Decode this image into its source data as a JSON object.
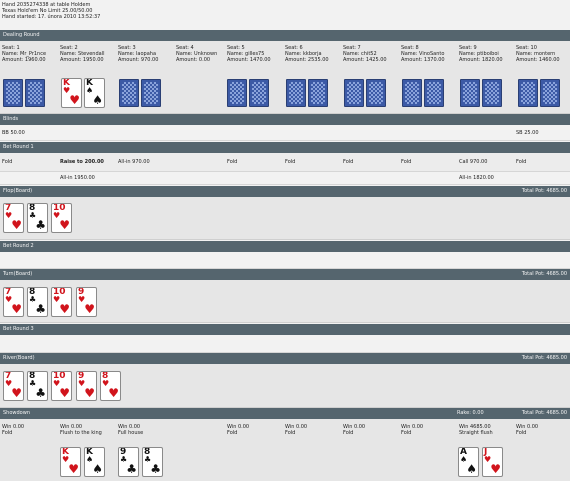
{
  "header": {
    "line1": "Hand 2035274338 at table Holdem",
    "line2": "Texas Hold'em No Limit 25.00/50.00",
    "line3": "Hand started: 17. února 2010 13:52:37"
  },
  "sections": {
    "dealing": "Dealing Round",
    "blinds": "Blinds",
    "bet1": "Bet Round 1",
    "flop": "Flop(Board)",
    "bet2": "Bet Round 2",
    "turn": "Turn(Board)",
    "bet3": "Bet Round 3",
    "river": "River(Board)",
    "showdown": "Showdown"
  },
  "pots": {
    "flop": "Total Pot: 4685.00",
    "turn": "Total Pot: 4685.00",
    "river": "Total Pot: 4685.00",
    "showdown": "Total Pot: 4685.00",
    "rake": "Rake: 0.00"
  },
  "seats": [
    {
      "seat": "Seat: 1",
      "name": "Name: Mr_Pr1nce",
      "amount": "Amount: 1960.00"
    },
    {
      "seat": "Seat: 2",
      "name": "Name: Stevendall",
      "amount": "Amount: 1950.00"
    },
    {
      "seat": "Seat: 3",
      "name": "Name: laopaha",
      "amount": "Amount: 970.00"
    },
    {
      "seat": "Seat: 4",
      "name": "Name: Unknown",
      "amount": "Amount: 0.00"
    },
    {
      "seat": "Seat: 5",
      "name": "Name: gilles75",
      "amount": "Amount: 1470.00"
    },
    {
      "seat": "Seat: 6",
      "name": "Name: kkborja",
      "amount": "Amount: 2535.00"
    },
    {
      "seat": "Seat: 7",
      "name": "Name: chit52",
      "amount": "Amount: 1425.00"
    },
    {
      "seat": "Seat: 8",
      "name": "Name: VinoSanto",
      "amount": "Amount: 1370.00"
    },
    {
      "seat": "Seat: 9",
      "name": "Name: ptiboiboi",
      "amount": "Amount: 1820.00"
    },
    {
      "seat": "Seat: 10",
      "name": "Name: montern",
      "amount": "Amount: 1460.00"
    }
  ],
  "blinds": {
    "bb": "BB 50.00",
    "sb": "SB 25.00"
  },
  "bet1": {
    "a": [
      "Fold",
      "Raise to 200.00",
      "All-in 970.00",
      "Fold",
      "Fold",
      "Fold",
      "Fold",
      "Call 970.00",
      "Fold"
    ],
    "b": [
      "All-in 1950.00",
      "All-in 1820.00"
    ]
  },
  "showdown": {
    "wins": [
      "Win 0.00",
      "Win 0.00",
      "Win 0.00",
      "Win 0.00",
      "Win 0.00",
      "Win 0.00",
      "Win 0.00",
      "Win 4685.00",
      "Win 0.00"
    ],
    "hands": [
      "Fold",
      "Flush to the king",
      "Full house",
      "Fold",
      "Fold",
      "Fold",
      "Fold",
      "Straight flush",
      "Fold"
    ]
  },
  "cards": {
    "dealt": [
      {
        "rank": "K",
        "suit": "♥",
        "color": "#d1141c"
      },
      {
        "rank": "K",
        "suit": "♠",
        "color": "#111111"
      }
    ],
    "flop": [
      {
        "rank": "7",
        "suit": "♥",
        "color": "#d1141c"
      },
      {
        "rank": "8",
        "suit": "♣",
        "color": "#111111"
      },
      {
        "rank": "10",
        "suit": "♥",
        "color": "#d1141c"
      }
    ],
    "turn": [
      {
        "rank": "7",
        "suit": "♥",
        "color": "#d1141c"
      },
      {
        "rank": "8",
        "suit": "♣",
        "color": "#111111"
      },
      {
        "rank": "10",
        "suit": "♥",
        "color": "#d1141c"
      },
      {
        "rank": "9",
        "suit": "♥",
        "color": "#d1141c"
      }
    ],
    "river": [
      {
        "rank": "7",
        "suit": "♥",
        "color": "#d1141c"
      },
      {
        "rank": "8",
        "suit": "♣",
        "color": "#111111"
      },
      {
        "rank": "10",
        "suit": "♥",
        "color": "#d1141c"
      },
      {
        "rank": "9",
        "suit": "♥",
        "color": "#d1141c"
      },
      {
        "rank": "8",
        "suit": "♥",
        "color": "#d1141c"
      }
    ],
    "sd_seat2": [
      {
        "rank": "K",
        "suit": "♥",
        "color": "#d1141c"
      },
      {
        "rank": "K",
        "suit": "♠",
        "color": "#111111"
      }
    ],
    "sd_seat3": [
      {
        "rank": "9",
        "suit": "♣",
        "color": "#111111"
      },
      {
        "rank": "8",
        "suit": "♣",
        "color": "#111111"
      }
    ],
    "sd_seat9": [
      {
        "rank": "A",
        "suit": "♠",
        "color": "#111111"
      },
      {
        "rank": "J",
        "suit": "♥",
        "color": "#d1141c"
      }
    ]
  },
  "colors": {
    "bar": "#55656e",
    "background": "#f2f2f2",
    "red_suit": "#d1141c",
    "card_back": "#3c5aa6"
  }
}
